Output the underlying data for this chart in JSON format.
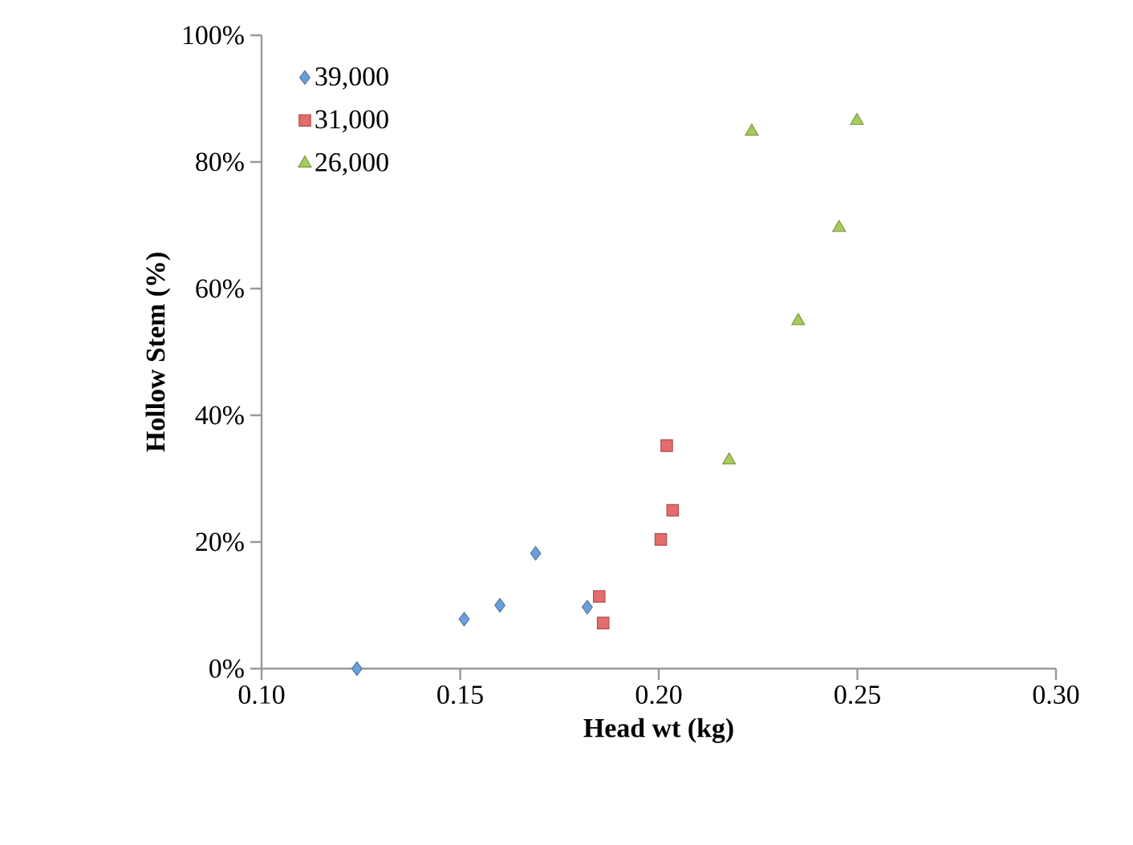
{
  "chart_data": {
    "type": "scatter",
    "xlabel": "Head wt (kg)",
    "ylabel": "Hollow Stem (%)",
    "xlim": [
      0.1,
      0.3
    ],
    "ylim": [
      0,
      100
    ],
    "xticks": [
      {
        "value": 0.1,
        "label": "0.10"
      },
      {
        "value": 0.15,
        "label": "0.15"
      },
      {
        "value": 0.2,
        "label": "0.20"
      },
      {
        "value": 0.25,
        "label": "0.25"
      },
      {
        "value": 0.3,
        "label": "0.30"
      }
    ],
    "yticks": [
      {
        "value": 0,
        "label": "0%"
      },
      {
        "value": 20,
        "label": "20%"
      },
      {
        "value": 40,
        "label": "40%"
      },
      {
        "value": 60,
        "label": "60%"
      },
      {
        "value": 80,
        "label": "80%"
      },
      {
        "value": 100,
        "label": "100%"
      }
    ],
    "legend": "top left",
    "grid": false,
    "series": [
      {
        "name": "39,000",
        "color": "#6a9fdc",
        "marker": "diamond",
        "x": [
          0.124,
          0.151,
          0.16,
          0.169,
          0.182
        ],
        "values": [
          0,
          7.8,
          10,
          18.2,
          9.7
        ]
      },
      {
        "name": "31,000",
        "color": "#e46c6a",
        "marker": "square",
        "x": [
          0.185,
          0.186,
          0.2005,
          0.2035,
          0.202
        ],
        "values": [
          11.4,
          7.2,
          20.4,
          25,
          35.2
        ]
      },
      {
        "name": "26,000",
        "color": "#a6cc5a",
        "marker": "triangle",
        "x": [
          0.2234,
          0.2499,
          0.2454,
          0.2351,
          0.2177
        ],
        "values": [
          84.8,
          86.5,
          69.6,
          54.9,
          32.9
        ]
      }
    ]
  }
}
